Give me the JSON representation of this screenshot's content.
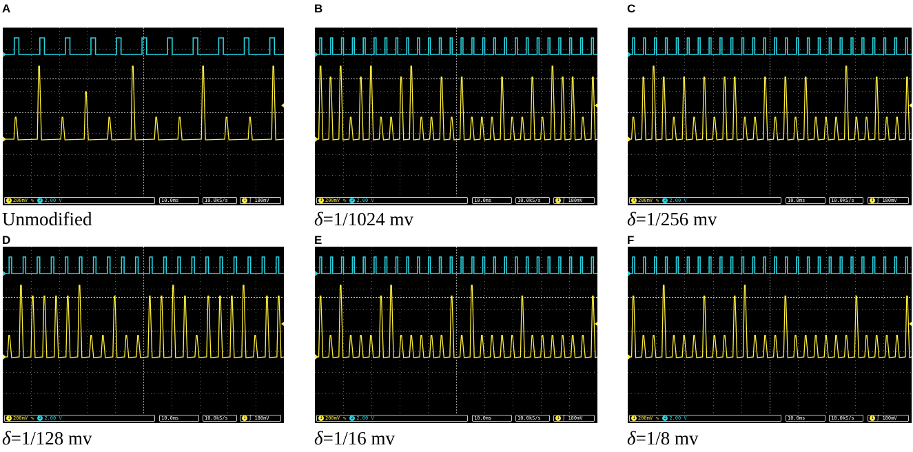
{
  "panels": [
    {
      "letter": "A",
      "caption_symbol": "",
      "caption_text": "Unmodified",
      "cyan_pulses": 11,
      "peaks": [
        0.3,
        1.0,
        0.3,
        0.65,
        0.3,
        1.0,
        0.3,
        0.3,
        1.0,
        0.3,
        0.3,
        1.0
      ]
    },
    {
      "letter": "B",
      "caption_symbol": "δ",
      "caption_text": "=1/1024 mv",
      "cyan_pulses": 26,
      "peaks": [
        1.0,
        0.85,
        1.0,
        0.3,
        0.85,
        1.0,
        0.3,
        0.3,
        0.85,
        1.0,
        0.3,
        0.3,
        0.85,
        0.3,
        0.85,
        0.3,
        0.3,
        0.3,
        0.85,
        0.3,
        0.3,
        0.85,
        0.3,
        1.0,
        0.85,
        0.85,
        0.3,
        0.85
      ]
    },
    {
      "letter": "C",
      "caption_symbol": "δ",
      "caption_text": "=1/256 mv",
      "cyan_pulses": 26,
      "peaks": [
        0.3,
        0.85,
        1.0,
        0.85,
        0.3,
        0.85,
        0.3,
        0.85,
        0.3,
        0.85,
        0.85,
        0.3,
        0.3,
        0.85,
        0.3,
        0.85,
        0.3,
        0.85,
        0.3,
        0.3,
        0.3,
        1.0,
        0.3,
        0.3,
        0.85,
        0.3,
        0.3,
        0.85
      ]
    },
    {
      "letter": "D",
      "caption_symbol": "δ",
      "caption_text": "=1/128 mv",
      "cyan_pulses": 20,
      "peaks": [
        0.3,
        1.0,
        0.85,
        0.85,
        0.85,
        0.85,
        1.0,
        0.3,
        0.3,
        0.85,
        0.3,
        0.3,
        0.85,
        0.85,
        1.0,
        0.85,
        0.3,
        0.85,
        0.85,
        0.85,
        1.0,
        0.3,
        0.85,
        0.85
      ]
    },
    {
      "letter": "E",
      "caption_symbol": "δ",
      "caption_text": "=1/16 mv",
      "cyan_pulses": 26,
      "peaks": [
        0.85,
        0.3,
        1.0,
        0.3,
        0.3,
        0.3,
        0.85,
        1.0,
        0.3,
        0.3,
        0.3,
        0.3,
        0.3,
        0.85,
        0.3,
        1.0,
        0.3,
        0.3,
        0.3,
        0.3,
        0.85,
        0.3,
        0.3,
        0.3,
        0.3,
        0.3,
        0.3,
        0.85
      ]
    },
    {
      "letter": "F",
      "caption_symbol": "δ",
      "caption_text": "=1/8 mv",
      "cyan_pulses": 26,
      "peaks": [
        0.85,
        0.3,
        0.3,
        1.0,
        0.3,
        0.3,
        0.3,
        0.85,
        0.3,
        0.3,
        0.85,
        1.0,
        0.3,
        0.3,
        0.3,
        0.85,
        0.3,
        0.3,
        0.3,
        0.3,
        0.3,
        0.3,
        0.85,
        0.3,
        0.3,
        0.3,
        0.3,
        0.85
      ]
    }
  ],
  "status": {
    "ch1_badge": "1",
    "ch1_scale": "200mV ∿",
    "ch2_badge": "2",
    "ch2_scale": "2.00 V",
    "timebase": "10.0ms",
    "sample_rate": "10.0kS/s",
    "trig_badge": "1",
    "trig_slope": "∫",
    "trig_level": "180mV"
  },
  "colors": {
    "ch1": "#ffef3a",
    "ch2": "#27d3e0",
    "grid": "#6a6a6a",
    "screen": "#000000"
  }
}
